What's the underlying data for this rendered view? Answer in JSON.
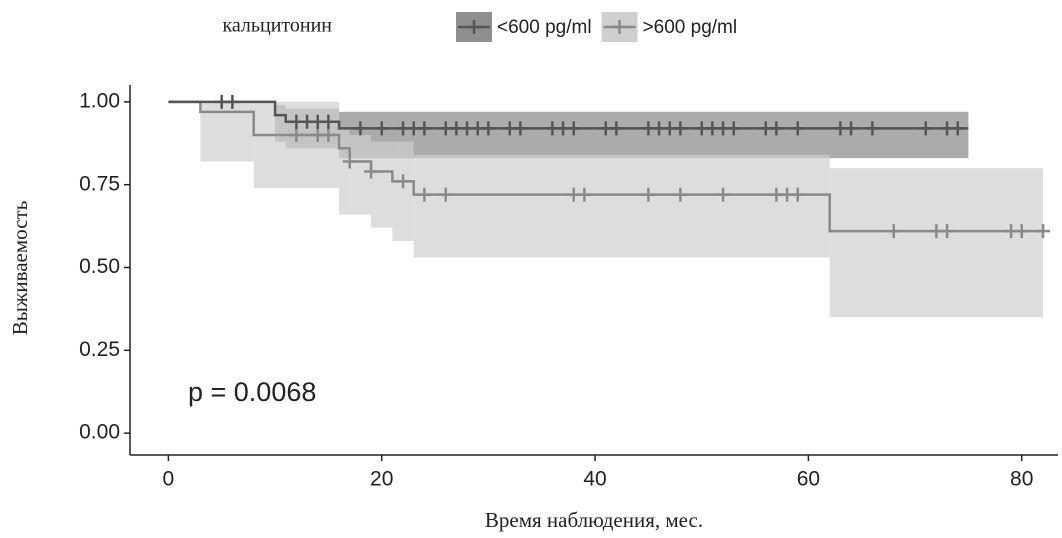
{
  "chart_data": {
    "type": "survival",
    "legend_title": "кальцитонин",
    "x_label": "Время наблюдения, мес.",
    "y_label": "Выживаемость",
    "annotation": "p = 0.0068",
    "xlim": [
      -3.6,
      83.4
    ],
    "ylim": [
      -0.066,
      1.051
    ],
    "xticks": [
      0,
      20,
      40,
      60,
      80
    ],
    "yticks": [
      {
        "value": 0,
        "label": "0.00"
      },
      {
        "value": 0.25,
        "label": "0.25"
      },
      {
        "value": 0.5,
        "label": "0.50"
      },
      {
        "value": 0.75,
        "label": "0.75"
      },
      {
        "value": 1,
        "label": "1.00"
      }
    ],
    "legend_position": "top",
    "series": [
      {
        "name": "<600 pg/ml",
        "color": "#555555",
        "band_color": "#8f8f8f",
        "time": [
          0,
          10,
          11,
          16,
          75
        ],
        "survival": [
          1,
          0.96,
          0.94,
          0.92,
          0.92
        ],
        "lower": [
          1,
          0.88,
          0.86,
          0.83,
          0.83
        ],
        "upper": [
          1,
          0.99,
          0.98,
          0.97,
          0.97
        ],
        "censor_times": [
          5,
          6,
          12,
          13,
          14,
          15,
          18,
          20,
          22,
          23,
          24,
          26,
          27,
          28,
          29,
          30,
          32,
          33,
          36,
          37,
          38,
          41,
          42,
          45,
          46,
          47,
          48,
          50,
          51,
          52,
          53,
          56,
          57,
          59,
          63,
          64,
          66,
          71,
          73,
          74
        ],
        "censor_values": [
          1,
          1,
          0.94,
          0.94,
          0.94,
          0.94,
          0.92,
          0.92,
          0.92,
          0.92,
          0.92,
          0.92,
          0.92,
          0.92,
          0.92,
          0.92,
          0.92,
          0.92,
          0.92,
          0.92,
          0.92,
          0.92,
          0.92,
          0.92,
          0.92,
          0.92,
          0.92,
          0.92,
          0.92,
          0.92,
          0.92,
          0.92,
          0.92,
          0.92,
          0.92,
          0.92,
          0.92,
          0.92,
          0.92,
          0.92
        ]
      },
      {
        "name": ">600 pg/ml",
        "color": "#8a8a8a",
        "band_color": "#cfcfcf",
        "time": [
          0,
          3,
          8,
          16,
          17,
          19,
          21,
          23,
          62,
          82
        ],
        "survival": [
          1,
          0.97,
          0.9,
          0.86,
          0.82,
          0.79,
          0.76,
          0.72,
          0.61,
          0.61
        ],
        "lower": [
          1,
          0.82,
          0.74,
          0.66,
          0.66,
          0.62,
          0.58,
          0.53,
          0.35,
          0.35
        ],
        "upper": [
          1,
          1,
          1,
          0.92,
          0.9,
          0.88,
          0.88,
          0.84,
          0.8,
          0.8
        ],
        "censor_times": [
          12,
          14,
          15,
          17,
          19,
          22,
          24,
          26,
          38,
          39,
          45,
          48,
          52,
          57,
          58,
          59,
          68,
          72,
          73,
          79,
          80,
          82
        ],
        "censor_values": [
          0.9,
          0.9,
          0.9,
          0.82,
          0.79,
          0.76,
          0.72,
          0.72,
          0.72,
          0.72,
          0.72,
          0.72,
          0.72,
          0.72,
          0.72,
          0.72,
          0.61,
          0.61,
          0.61,
          0.61,
          0.61,
          0.61
        ]
      }
    ]
  }
}
